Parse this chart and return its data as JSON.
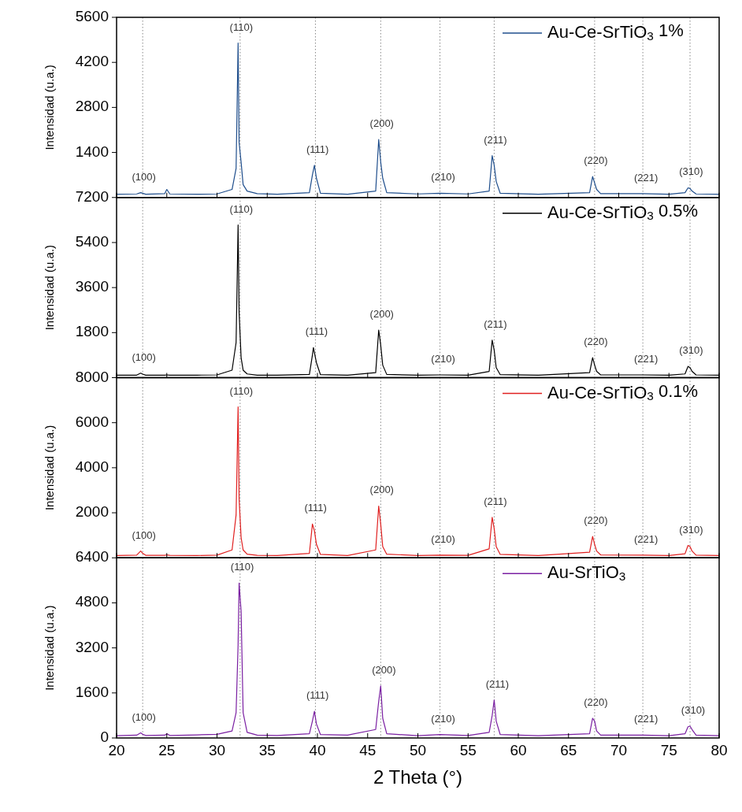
{
  "chart_data": [
    {
      "type": "line",
      "x": [
        20,
        22,
        22.4,
        22.6,
        22.9,
        24.8,
        25.0,
        25.3,
        28,
        30,
        31.5,
        31.9,
        32.1,
        32.2,
        32.4,
        32.6,
        33,
        34,
        36,
        39.2,
        39.5,
        39.7,
        39.9,
        40.3,
        43,
        45.8,
        46.1,
        46.3,
        46.5,
        46.9,
        50,
        52.2,
        55,
        57.1,
        57.4,
        57.6,
        57.8,
        58.2,
        62,
        67.1,
        67.4,
        67.6,
        67.8,
        68.2,
        72.4,
        75,
        76.6,
        76.9,
        77.1,
        77.3,
        77.7,
        80
      ],
      "series": [
        {
          "name": "Au-Ce-SrTiO$_{3}$ 1%",
          "color": "#1f4e8c",
          "values": [
            100,
            110,
            150,
            130,
            100,
            120,
            250,
            110,
            100,
            110,
            250,
            900,
            4800,
            1700,
            1100,
            400,
            200,
            120,
            100,
            150,
            700,
            1000,
            600,
            130,
            100,
            200,
            1800,
            1100,
            600,
            150,
            110,
            130,
            110,
            200,
            1300,
            1000,
            500,
            130,
            100,
            150,
            650,
            450,
            250,
            120,
            120,
            100,
            150,
            300,
            280,
            200,
            110,
            100
          ]
        }
      ],
      "xlim": [
        20,
        80
      ],
      "xticks": [
        20,
        25,
        30,
        35,
        40,
        45,
        50,
        55,
        60,
        65,
        70,
        75,
        80
      ],
      "ylim": [
        0,
        5600
      ],
      "yticks": [
        1400,
        2800,
        4200,
        5600
      ],
      "ylabel": "Intensidad (u.a.)",
      "tick_labels": "y",
      "legend": "top right",
      "grid": false,
      "ref_lines": [
        {
          "axis": "x",
          "value": 22.6,
          "line_style": "dotted"
        },
        {
          "axis": "x",
          "value": 32.3,
          "line_style": "dotted"
        },
        {
          "axis": "x",
          "value": 39.8,
          "line_style": "dotted"
        },
        {
          "axis": "x",
          "value": 46.3,
          "line_style": "dotted"
        },
        {
          "axis": "x",
          "value": 52.2,
          "line_style": "dotted"
        },
        {
          "axis": "x",
          "value": 57.6,
          "line_style": "dotted"
        },
        {
          "axis": "x",
          "value": 67.6,
          "line_style": "dotted"
        },
        {
          "axis": "x",
          "value": 72.4,
          "line_style": "dotted"
        },
        {
          "axis": "x",
          "value": 77.1,
          "line_style": "dotted"
        }
      ],
      "annotations": [
        {
          "text": "(100)",
          "x": 22.4,
          "y": 150
        },
        {
          "text": "(110)",
          "x": 32.1,
          "y": 4800
        },
        {
          "text": "(111)",
          "x": 39.7,
          "y": 1000
        },
        {
          "text": "(200)",
          "x": 46.1,
          "y": 1800
        },
        {
          "text": "(210)",
          "x": 52.2,
          "y": 130
        },
        {
          "text": "(211)",
          "x": 57.4,
          "y": 1300
        },
        {
          "text": "(220)",
          "x": 67.4,
          "y": 650
        },
        {
          "text": "(221)",
          "x": 72.4,
          "y": 120
        },
        {
          "text": "(310)",
          "x": 76.9,
          "y": 300
        }
      ]
    },
    {
      "type": "line",
      "x": [
        20,
        22,
        22.4,
        22.6,
        22.9,
        24.8,
        25.0,
        25.3,
        28,
        30,
        31.5,
        31.9,
        32.1,
        32.2,
        32.4,
        32.6,
        33,
        34,
        36,
        39.2,
        39.5,
        39.6,
        39.9,
        40.3,
        43,
        45.8,
        46.1,
        46.3,
        46.5,
        46.9,
        50,
        52.2,
        55,
        57.1,
        57.4,
        57.6,
        57.8,
        58.2,
        62,
        67.1,
        67.4,
        67.6,
        67.8,
        68.2,
        72.4,
        75,
        76.6,
        76.9,
        77.1,
        77.3,
        77.7,
        80
      ],
      "series": [
        {
          "name": "Au-Ce-SrTiO$_{3}$ 0.5%",
          "color": "#000000",
          "values": [
            100,
            100,
            180,
            140,
            100,
            100,
            110,
            100,
            100,
            110,
            300,
            1400,
            6100,
            2600,
            800,
            300,
            150,
            100,
            100,
            130,
            900,
            1200,
            600,
            120,
            100,
            200,
            1900,
            1300,
            500,
            130,
            100,
            110,
            100,
            250,
            1500,
            1100,
            400,
            120,
            100,
            200,
            800,
            500,
            250,
            110,
            110,
            100,
            150,
            450,
            400,
            250,
            110,
            100
          ]
        }
      ],
      "xlim": [
        20,
        80
      ],
      "xticks": [
        20,
        25,
        30,
        35,
        40,
        45,
        50,
        55,
        60,
        65,
        70,
        75,
        80
      ],
      "ylim": [
        0,
        7200
      ],
      "yticks": [
        1800,
        3600,
        5400,
        7200
      ],
      "ylabel": "Intensidad (u.a.)",
      "tick_labels": "y",
      "legend": "top right",
      "grid": false,
      "ref_lines": [
        {
          "axis": "x",
          "value": 22.6,
          "line_style": "dotted"
        },
        {
          "axis": "x",
          "value": 32.3,
          "line_style": "dotted"
        },
        {
          "axis": "x",
          "value": 39.8,
          "line_style": "dotted"
        },
        {
          "axis": "x",
          "value": 46.3,
          "line_style": "dotted"
        },
        {
          "axis": "x",
          "value": 52.2,
          "line_style": "dotted"
        },
        {
          "axis": "x",
          "value": 57.6,
          "line_style": "dotted"
        },
        {
          "axis": "x",
          "value": 67.6,
          "line_style": "dotted"
        },
        {
          "axis": "x",
          "value": 72.4,
          "line_style": "dotted"
        },
        {
          "axis": "x",
          "value": 77.1,
          "line_style": "dotted"
        }
      ],
      "annotations": [
        {
          "text": "(100)",
          "x": 22.4,
          "y": 180
        },
        {
          "text": "(110)",
          "x": 32.1,
          "y": 6100
        },
        {
          "text": "(111)",
          "x": 39.6,
          "y": 1200
        },
        {
          "text": "(200)",
          "x": 46.1,
          "y": 1900
        },
        {
          "text": "(210)",
          "x": 52.2,
          "y": 110
        },
        {
          "text": "(211)",
          "x": 57.4,
          "y": 1500
        },
        {
          "text": "(220)",
          "x": 67.4,
          "y": 800
        },
        {
          "text": "(221)",
          "x": 72.4,
          "y": 110
        },
        {
          "text": "(310)",
          "x": 76.9,
          "y": 450
        }
      ]
    },
    {
      "type": "line",
      "x": [
        20,
        22,
        22.4,
        22.6,
        22.9,
        24.8,
        25.0,
        25.3,
        28,
        30,
        31.5,
        31.9,
        32.1,
        32.2,
        32.4,
        32.6,
        33,
        34,
        36,
        39.2,
        39.5,
        39.7,
        39.9,
        40.3,
        43,
        45.8,
        46.1,
        46.3,
        46.5,
        46.9,
        50,
        52.2,
        55,
        57.1,
        57.4,
        57.6,
        57.8,
        58.2,
        62,
        67.1,
        67.4,
        67.6,
        67.8,
        68.2,
        72.4,
        75,
        76.6,
        76.9,
        77.1,
        77.3,
        77.7,
        80
      ],
      "series": [
        {
          "name": "Au-Ce-SrTiO$_{3}$ 0.1%",
          "color": "#e02020",
          "values": [
            100,
            120,
            300,
            200,
            110,
            110,
            130,
            110,
            100,
            120,
            350,
            1900,
            6700,
            2600,
            900,
            350,
            160,
            110,
            100,
            200,
            1500,
            1200,
            600,
            150,
            100,
            350,
            2300,
            1500,
            500,
            160,
            100,
            120,
            110,
            400,
            1800,
            1300,
            500,
            150,
            100,
            250,
            950,
            600,
            300,
            130,
            120,
            100,
            180,
            550,
            500,
            300,
            120,
            100
          ]
        }
      ],
      "xlim": [
        20,
        80
      ],
      "xticks": [
        20,
        25,
        30,
        35,
        40,
        45,
        50,
        55,
        60,
        65,
        70,
        75,
        80
      ],
      "ylim": [
        0,
        8000
      ],
      "yticks": [
        2000,
        4000,
        6000,
        8000
      ],
      "ylabel": "Intensidad (u.a.)",
      "tick_labels": "y",
      "legend": "top right",
      "grid": false,
      "ref_lines": [
        {
          "axis": "x",
          "value": 22.6,
          "line_style": "dotted"
        },
        {
          "axis": "x",
          "value": 32.3,
          "line_style": "dotted"
        },
        {
          "axis": "x",
          "value": 39.8,
          "line_style": "dotted"
        },
        {
          "axis": "x",
          "value": 46.3,
          "line_style": "dotted"
        },
        {
          "axis": "x",
          "value": 52.2,
          "line_style": "dotted"
        },
        {
          "axis": "x",
          "value": 57.6,
          "line_style": "dotted"
        },
        {
          "axis": "x",
          "value": 67.6,
          "line_style": "dotted"
        },
        {
          "axis": "x",
          "value": 72.4,
          "line_style": "dotted"
        },
        {
          "axis": "x",
          "value": 77.1,
          "line_style": "dotted"
        }
      ],
      "annotations": [
        {
          "text": "(100)",
          "x": 22.4,
          "y": 300
        },
        {
          "text": "(110)",
          "x": 32.1,
          "y": 6700
        },
        {
          "text": "(111)",
          "x": 39.5,
          "y": 1500
        },
        {
          "text": "(200)",
          "x": 46.1,
          "y": 2300
        },
        {
          "text": "(210)",
          "x": 52.2,
          "y": 120
        },
        {
          "text": "(211)",
          "x": 57.4,
          "y": 1800
        },
        {
          "text": "(220)",
          "x": 67.4,
          "y": 950
        },
        {
          "text": "(221)",
          "x": 72.4,
          "y": 120
        },
        {
          "text": "(310)",
          "x": 76.9,
          "y": 550
        }
      ]
    },
    {
      "type": "line",
      "x": [
        20,
        22,
        22.4,
        22.6,
        22.9,
        24.8,
        25.0,
        25.3,
        28,
        30,
        31.5,
        31.9,
        32.1,
        32.2,
        32.4,
        32.6,
        33,
        34,
        36,
        39.2,
        39.5,
        39.7,
        39.9,
        40.3,
        43,
        45.8,
        46.1,
        46.3,
        46.5,
        46.9,
        50,
        52.2,
        55,
        57.1,
        57.4,
        57.6,
        57.8,
        58.2,
        62,
        67.1,
        67.4,
        67.6,
        67.8,
        68.2,
        72.4,
        75,
        76.6,
        76.9,
        77.1,
        77.3,
        77.7,
        80
      ],
      "series": [
        {
          "name": "Au-SrTiO$_{3}$",
          "color": "#7a1fa2",
          "values": [
            80,
            100,
            180,
            130,
            90,
            100,
            150,
            90,
            110,
            130,
            250,
            900,
            3300,
            5500,
            4500,
            900,
            200,
            100,
            90,
            150,
            600,
            950,
            500,
            120,
            100,
            300,
            1300,
            1850,
            700,
            150,
            80,
            120,
            90,
            200,
            800,
            1350,
            600,
            120,
            80,
            150,
            700,
            600,
            250,
            100,
            100,
            80,
            150,
            400,
            420,
            300,
            100,
            80
          ]
        }
      ],
      "xlim": [
        20,
        80
      ],
      "xticks": [
        20,
        25,
        30,
        35,
        40,
        45,
        50,
        55,
        60,
        65,
        70,
        75,
        80
      ],
      "ylim": [
        0,
        6400
      ],
      "yticks": [
        0,
        1600,
        3200,
        4800,
        6400
      ],
      "ylabel": "Intensidad (u.a.)",
      "xlabel": "2 Theta (°)",
      "legend": "top right",
      "grid": false,
      "ref_lines": [
        {
          "axis": "x",
          "value": 22.6,
          "line_style": "dotted"
        },
        {
          "axis": "x",
          "value": 32.3,
          "line_style": "dotted"
        },
        {
          "axis": "x",
          "value": 39.8,
          "line_style": "dotted"
        },
        {
          "axis": "x",
          "value": 46.3,
          "line_style": "dotted"
        },
        {
          "axis": "x",
          "value": 52.2,
          "line_style": "dotted"
        },
        {
          "axis": "x",
          "value": 57.6,
          "line_style": "dotted"
        },
        {
          "axis": "x",
          "value": 67.6,
          "line_style": "dotted"
        },
        {
          "axis": "x",
          "value": 72.4,
          "line_style": "dotted"
        },
        {
          "axis": "x",
          "value": 77.1,
          "line_style": "dotted"
        }
      ],
      "annotations": [
        {
          "text": "(100)",
          "x": 22.4,
          "y": 180
        },
        {
          "text": "(110)",
          "x": 32.2,
          "y": 5500
        },
        {
          "text": "(111)",
          "x": 39.7,
          "y": 950
        },
        {
          "text": "(200)",
          "x": 46.3,
          "y": 1850
        },
        {
          "text": "(210)",
          "x": 52.2,
          "y": 120
        },
        {
          "text": "(211)",
          "x": 57.6,
          "y": 1350
        },
        {
          "text": "(220)",
          "x": 67.4,
          "y": 700
        },
        {
          "text": "(221)",
          "x": 72.4,
          "y": 100
        },
        {
          "text": "(310)",
          "x": 77.1,
          "y": 420
        }
      ]
    }
  ]
}
